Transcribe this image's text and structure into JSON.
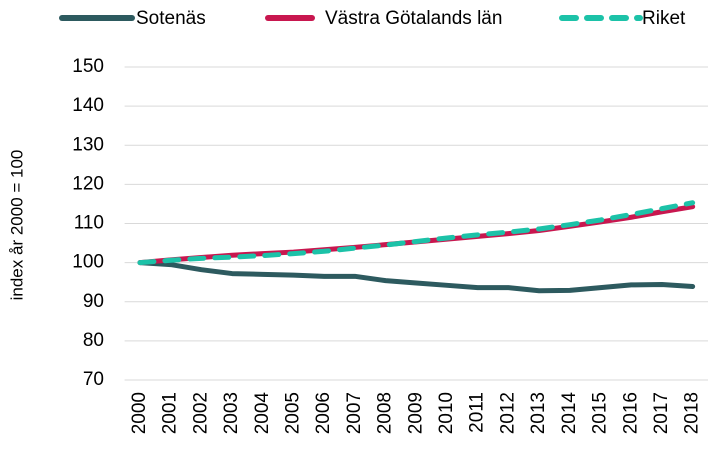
{
  "chart_data": {
    "type": "line",
    "y_label": "index år 2000 = 100",
    "categories": [
      "2000",
      "2001",
      "2002",
      "2003",
      "2004",
      "2005",
      "2006",
      "2007",
      "2008",
      "2009",
      "2010",
      "2011",
      "2012",
      "2013",
      "2014",
      "2015",
      "2016",
      "2017",
      "2018"
    ],
    "series": [
      {
        "name": "Sotenäs",
        "color": "#2d5a5f",
        "dash": false,
        "values": [
          100,
          99.5,
          98.2,
          97.2,
          97.0,
          96.8,
          96.5,
          96.5,
          95.4,
          94.8,
          94.2,
          93.6,
          93.6,
          92.8,
          92.9,
          93.6,
          94.3,
          94.4,
          93.9
        ]
      },
      {
        "name": "Västra Götalands län",
        "color": "#c8174f",
        "dash": false,
        "values": [
          100,
          100.7,
          101.3,
          101.9,
          102.3,
          102.7,
          103.3,
          103.9,
          104.6,
          105.3,
          106.0,
          106.7,
          107.4,
          108.2,
          109.3,
          110.4,
          111.6,
          113.0,
          114.3
        ]
      },
      {
        "name": "Riket",
        "color": "#1cc2a8",
        "dash": true,
        "values": [
          100,
          100.6,
          101.1,
          101.4,
          101.8,
          102.3,
          102.9,
          103.7,
          104.5,
          105.4,
          106.3,
          107.1,
          107.8,
          108.6,
          109.7,
          110.9,
          112.3,
          113.8,
          115.3
        ]
      }
    ],
    "ylim": [
      70,
      150
    ],
    "yticks": [
      70,
      80,
      90,
      100,
      110,
      120,
      130,
      140,
      150
    ],
    "grid": true,
    "legend": "top"
  }
}
